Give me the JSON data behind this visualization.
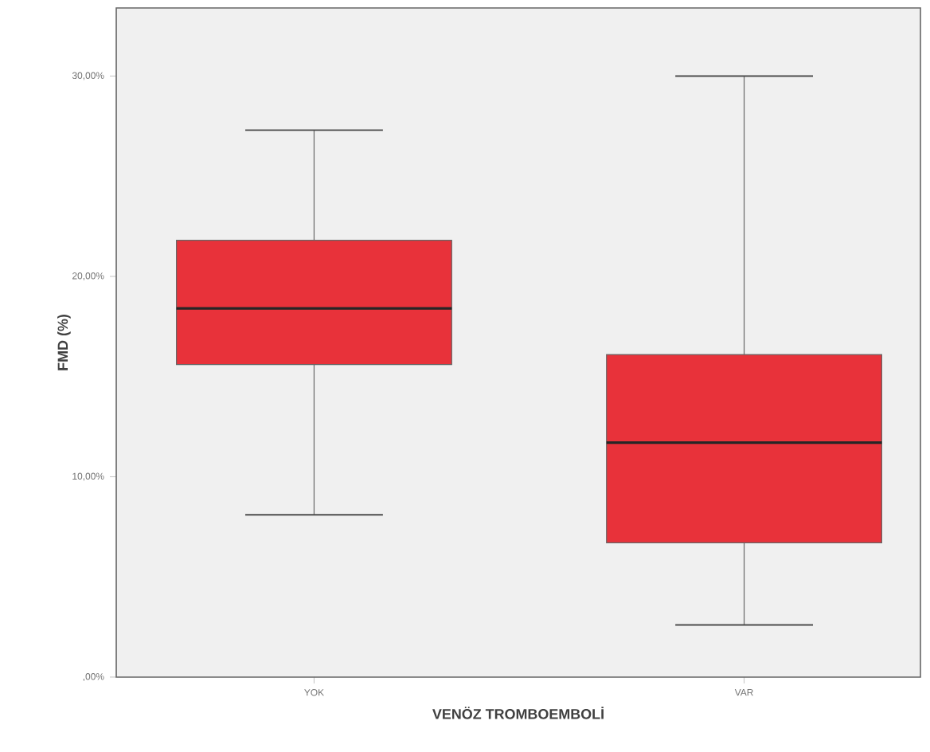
{
  "chart_data": {
    "type": "box",
    "xlabel": "VENÖZ TROMBOEMBOLİ",
    "ylabel": "FMD (%)",
    "categories": [
      "YOK",
      "VAR"
    ],
    "color": "#e8323a",
    "boxes": [
      {
        "low": 8.1,
        "q1": 15.6,
        "median": 18.4,
        "q3": 21.8,
        "high": 27.3
      },
      {
        "low": 2.6,
        "q1": 6.7,
        "median": 11.7,
        "q3": 16.1,
        "high": 30.0
      }
    ],
    "ylim": [
      0,
      33.4
    ],
    "yticks": [
      {
        "value": 0,
        "label": ",00%"
      },
      {
        "value": 10,
        "label": "10,00%"
      },
      {
        "value": 20,
        "label": "20,00%"
      },
      {
        "value": 30,
        "label": "30,00%"
      }
    ],
    "grid": false
  }
}
